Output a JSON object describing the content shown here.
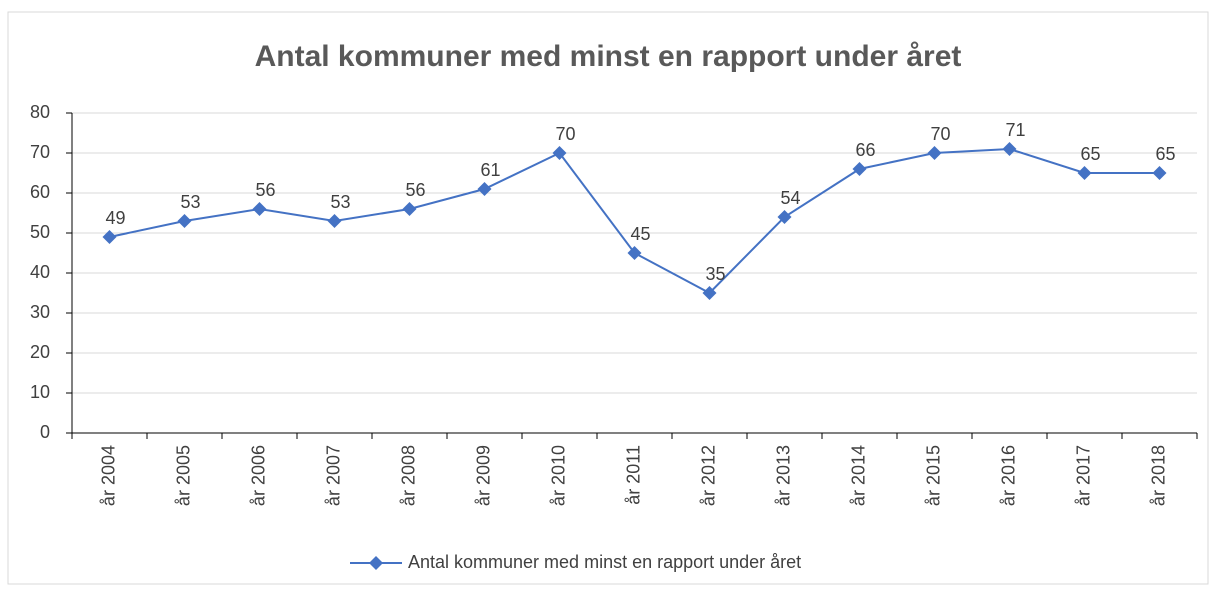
{
  "chart_data": {
    "type": "line",
    "title": "Antal kommuner med minst en rapport under året",
    "categories": [
      "år 2004",
      "år 2005",
      "år 2006",
      "år 2007",
      "år 2008",
      "år 2009",
      "år 2010",
      "år 2011",
      "år 2012",
      "år 2013",
      "år 2014",
      "år 2015",
      "år 2016",
      "år 2017",
      "år 2018"
    ],
    "series": [
      {
        "name": "Antal kommuner med minst en rapport under året",
        "color": "#4472c4",
        "values": [
          49,
          53,
          56,
          53,
          56,
          61,
          70,
          45,
          35,
          54,
          66,
          70,
          71,
          65,
          65
        ]
      }
    ],
    "ylim": [
      0,
      80
    ],
    "yticks": [
      0,
      10,
      20,
      30,
      40,
      50,
      60,
      70,
      80
    ],
    "grid": true,
    "legend": "bottom"
  }
}
